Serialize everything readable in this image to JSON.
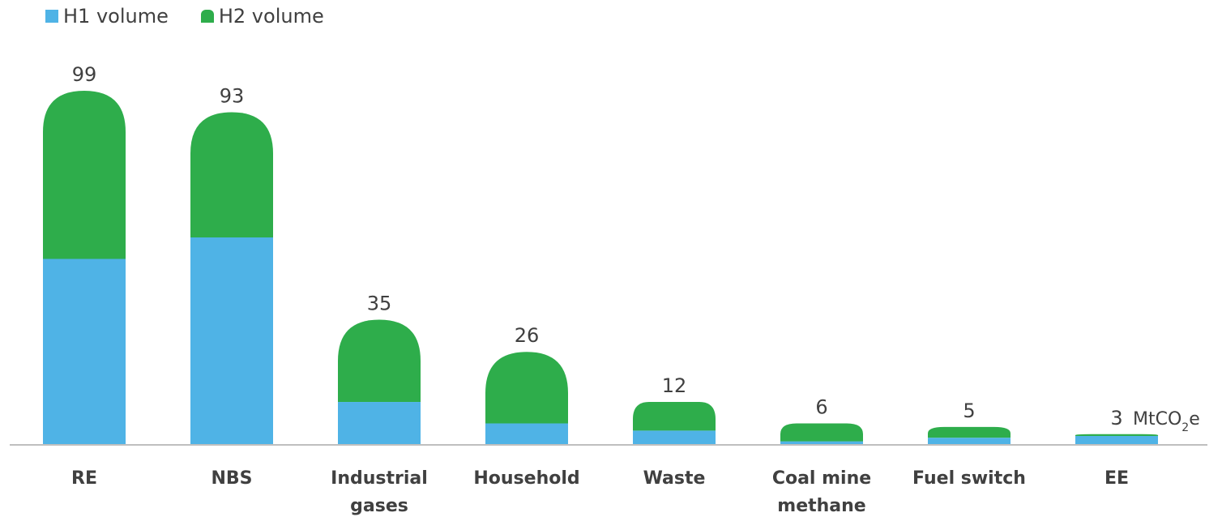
{
  "chart_data": {
    "type": "bar",
    "stacked": true,
    "categories": [
      [
        "RE"
      ],
      [
        "NBS"
      ],
      [
        "Industrial",
        "gases"
      ],
      [
        "Household"
      ],
      [
        "Waste"
      ],
      [
        "Coal mine",
        "methane"
      ],
      [
        "Fuel switch"
      ],
      [
        "EE"
      ]
    ],
    "series": [
      {
        "name": "H1 volume",
        "color": "#4FB3E6",
        "values": [
          52,
          58,
          12,
          6,
          4,
          1,
          2,
          2.5
        ]
      },
      {
        "name": "H2 volume",
        "color": "#2EAD4B",
        "values": [
          47,
          35,
          23,
          20,
          8,
          5,
          3,
          0.5
        ]
      }
    ],
    "totals": [
      "99",
      "93",
      "35",
      "26",
      "12",
      "6",
      "5",
      "3"
    ],
    "unit": {
      "prefix": "MtCO",
      "sub": "2",
      "suffix": "e"
    },
    "legend_position": "top-left",
    "ylim": [
      0,
      99
    ],
    "grid": false
  }
}
